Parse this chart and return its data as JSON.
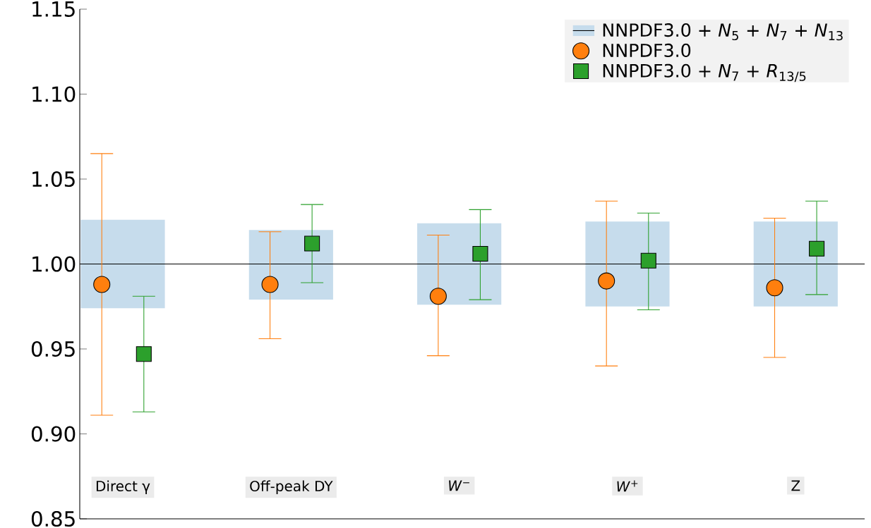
{
  "chart_data": {
    "type": "scatter",
    "categories": [
      "Direct γ",
      "Off-peak DY",
      "*W*$^{−}$",
      "*W*$^{+}$",
      "Z"
    ],
    "series": [
      {
        "name": "NNPDF3.0 + *N*$_{5}$ + *N*$_{7}$ + *N*$_{13}$",
        "type": "bar",
        "color": "#c6dcec",
        "base": [
          0.974,
          0.979,
          0.976,
          0.975,
          0.975
        ],
        "values": [
          0.052,
          0.041,
          0.048,
          0.05,
          0.05
        ]
      },
      {
        "name": "NNPDF3.0",
        "marker": "circle",
        "color": "#ff7f0e",
        "values": [
          0.988,
          0.988,
          0.981,
          0.99,
          0.986
        ],
        "errors": [
          [
            0.911,
            1.065
          ],
          [
            0.956,
            1.019
          ],
          [
            0.946,
            1.017
          ],
          [
            0.94,
            1.037
          ],
          [
            0.945,
            1.027
          ]
        ]
      },
      {
        "name": "NNPDF3.0 + *N*$_{7}$ + *R*$_{13/5}$",
        "marker": "square",
        "color": "#2ca02c",
        "values": [
          0.947,
          1.012,
          1.006,
          1.002,
          1.009
        ],
        "errors": [
          [
            0.913,
            0.981
          ],
          [
            0.989,
            1.035
          ],
          [
            0.979,
            1.032
          ],
          [
            0.973,
            1.03
          ],
          [
            0.982,
            1.037
          ]
        ]
      }
    ],
    "ylim": [
      0.85,
      1.15
    ],
    "yticks": [
      {
        "value": 0.85,
        "label": "0.85"
      },
      {
        "value": 0.9,
        "label": "0.90"
      },
      {
        "value": 0.95,
        "label": "0.95"
      },
      {
        "value": 1.0,
        "label": "1.00"
      },
      {
        "value": 1.05,
        "label": "1.05"
      },
      {
        "value": 1.1,
        "label": "1.10"
      },
      {
        "value": 1.15,
        "label": "1.15"
      }
    ],
    "ref_lines": [
      {
        "axis": "y",
        "value": 1.0,
        "color": "#000000"
      }
    ],
    "grid": false,
    "legend": "top right"
  }
}
